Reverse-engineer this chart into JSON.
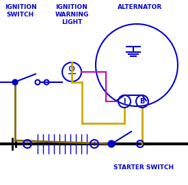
{
  "bg_color": "#ffffff",
  "blue": "#0000cc",
  "yellow": "#ccaa00",
  "brown": "#886600",
  "magenta": "#cc00aa",
  "black": "#000000",
  "label_ignition_switch": "IGNITION\nSWITCH",
  "label_warning_light": "IGNITION\nWARNING\nLIGHT",
  "label_alternator": "ALTERNATOR",
  "label_starter_switch": "STARTER SWITCH",
  "fig_width": 2.75,
  "fig_height": 2.7,
  "dpi": 100
}
